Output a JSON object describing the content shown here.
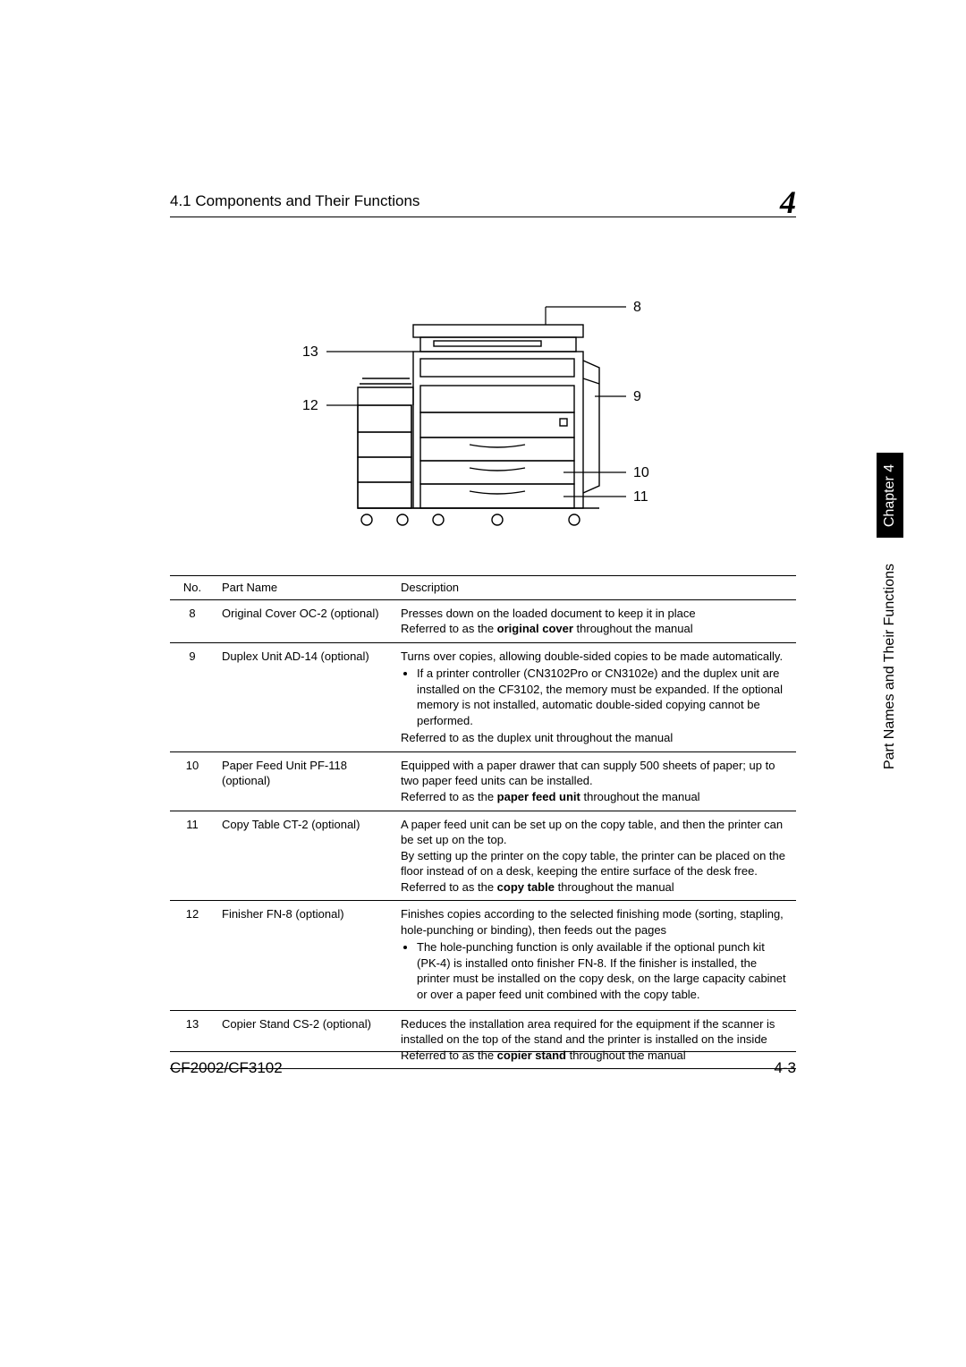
{
  "header": {
    "section_title": "4.1 Components and Their Functions",
    "chapter_number": "4"
  },
  "side": {
    "tab": "Chapter 4",
    "label": "Part Names and Their Functions"
  },
  "diagram": {
    "callouts": {
      "c8": "8",
      "c9": "9",
      "c10": "10",
      "c11": "11",
      "c12": "12",
      "c13": "13"
    }
  },
  "table": {
    "headers": {
      "no": "No.",
      "part": "Part Name",
      "desc": "Description"
    },
    "rows": [
      {
        "no": "8",
        "part": "Original Cover OC-2 (optional)",
        "desc": {
          "lines": [
            "Presses down on the loaded document to keep it in place"
          ],
          "ref_prefix": "Referred to as the ",
          "ref_bold": "original cover",
          "ref_suffix": " throughout the manual"
        }
      },
      {
        "no": "9",
        "part": "Duplex Unit AD-14 (optional)",
        "desc": {
          "lines": [
            "Turns over copies, allowing double-sided copies to be made automatically."
          ],
          "bullets": [
            "If a printer controller (CN3102Pro or CN3102e) and the duplex unit are installed on the CF3102, the memory must be expanded. If the optional memory is not installed, automatic double-sided copying cannot be performed."
          ],
          "ref_plain": "Referred to as the duplex unit throughout the manual"
        }
      },
      {
        "no": "10",
        "part": "Paper Feed Unit PF-118 (optional)",
        "desc": {
          "lines": [
            "Equipped with a paper drawer that can supply 500 sheets of paper; up to two paper feed units can be installed."
          ],
          "ref_prefix": "Referred to as the ",
          "ref_bold": "paper feed unit",
          "ref_suffix": " throughout the manual"
        }
      },
      {
        "no": "11",
        "part": "Copy Table CT-2 (optional)",
        "desc": {
          "lines": [
            "A paper feed unit can be set up on the copy table, and then the printer can be set up on the top.",
            "By setting up the printer on the copy table, the printer can be placed on the floor instead of on a desk, keeping the entire surface of the desk free."
          ],
          "ref_prefix": "Referred to as the ",
          "ref_bold": "copy table",
          "ref_suffix": " throughout the manual"
        }
      },
      {
        "no": "12",
        "part": "Finisher FN-8 (optional)",
        "desc": {
          "lines": [
            "Finishes copies according to the selected finishing mode (sorting, stapling, hole-punching or binding), then feeds out the pages"
          ],
          "bullets": [
            "The hole-punching function is only available if the optional punch kit (PK-4) is installed onto finisher FN-8. If the finisher is installed, the printer must be installed on the copy desk, on the large capacity cabinet or over a paper feed unit combined with the copy table."
          ]
        }
      },
      {
        "no": "13",
        "part": "Copier Stand CS-2 (optional)",
        "desc": {
          "lines": [
            "Reduces the installation area required for the equipment if the scanner is installed on the top of the stand and the printer is installed on the inside"
          ],
          "ref_prefix": "Referred to as the ",
          "ref_bold": "copier stand",
          "ref_suffix": " throughout the manual"
        }
      }
    ]
  },
  "footer": {
    "left": "CF2002/CF3102",
    "right": "4-3"
  }
}
